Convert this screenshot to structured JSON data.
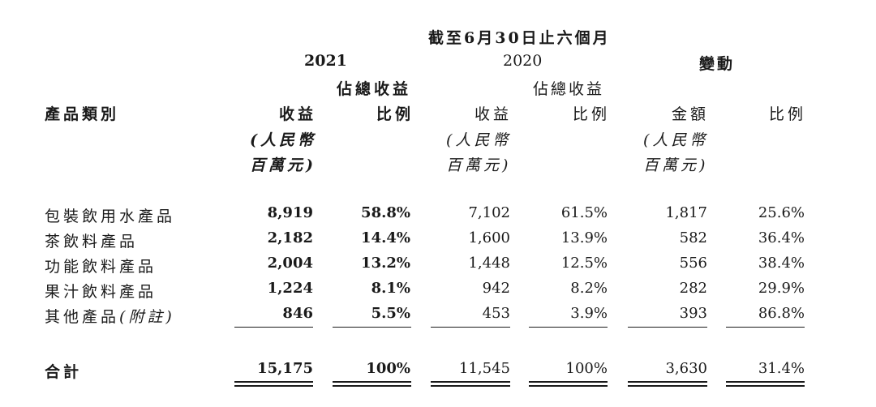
{
  "header": {
    "period": "截至6月30日止六個月",
    "year_2021": "2021",
    "year_2020": "2020",
    "change": "變動"
  },
  "columns": {
    "category": "產品類別",
    "pct_of_total_top": "佔總收益",
    "pct_of_total_bottom": "比例",
    "revenue": "收益",
    "unit_line1": "(人民幣",
    "unit_line2": "百萬元)",
    "amount": "金額",
    "ratio": "比例"
  },
  "rows": [
    {
      "category": "包裝飲用水產品",
      "rev2021": "8,919",
      "pct2021": "58.8%",
      "rev2020": "7,102",
      "pct2020": "61.5%",
      "change_amt": "1,817",
      "change_pct": "25.6%"
    },
    {
      "category": "茶飲料產品",
      "rev2021": "2,182",
      "pct2021": "14.4%",
      "rev2020": "1,600",
      "pct2020": "13.9%",
      "change_amt": "582",
      "change_pct": "36.4%"
    },
    {
      "category": "功能飲料產品",
      "rev2021": "2,004",
      "pct2021": "13.2%",
      "rev2020": "1,448",
      "pct2020": "12.5%",
      "change_amt": "556",
      "change_pct": "38.4%"
    },
    {
      "category": "果汁飲料產品",
      "rev2021": "1,224",
      "pct2021": "8.1%",
      "rev2020": "942",
      "pct2020": "8.2%",
      "change_amt": "282",
      "change_pct": "29.9%"
    },
    {
      "category": "其他產品",
      "category_note": "(附註)",
      "rev2021": "846",
      "pct2021": "5.5%",
      "rev2020": "453",
      "pct2020": "3.9%",
      "change_amt": "393",
      "change_pct": "86.8%"
    }
  ],
  "total": {
    "category": "合計",
    "rev2021": "15,175",
    "pct2021": "100%",
    "rev2020": "11,545",
    "pct2020": "100%",
    "change_amt": "3,630",
    "change_pct": "31.4%"
  }
}
